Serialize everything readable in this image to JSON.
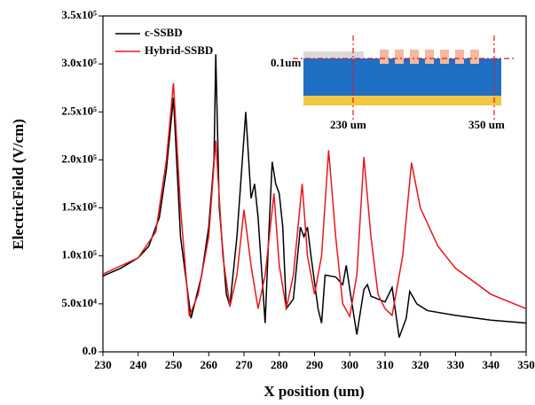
{
  "chart_data": {
    "type": "line",
    "xlabel": "X position (um)",
    "ylabel": "ElectricField (V/cm)",
    "xlim": [
      230,
      350
    ],
    "xticks": [
      230,
      240,
      250,
      260,
      270,
      280,
      290,
      300,
      310,
      320,
      330,
      340,
      350
    ],
    "ylim": [
      0,
      350000
    ],
    "yticks": [
      {
        "value": 0,
        "label": "0.0"
      },
      {
        "value": 50000,
        "label": "5.0x10⁴"
      },
      {
        "value": 100000,
        "label": "1.0x10⁵"
      },
      {
        "value": 150000,
        "label": "1.5x10⁵"
      },
      {
        "value": 200000,
        "label": "2.0x10⁵"
      },
      {
        "value": 250000,
        "label": "2.5x10⁵"
      },
      {
        "value": 300000,
        "label": "3.0x10⁵"
      },
      {
        "value": 350000,
        "label": "3.5x10⁵"
      }
    ],
    "legend": "upper left",
    "annotations": [
      "0.1um",
      "230 um",
      "350 um"
    ],
    "series": [
      {
        "name": "c-SSBD",
        "color": "#000000",
        "x": [
          230,
          235,
          240,
          243,
          246,
          248,
          250,
          252,
          255,
          258,
          260,
          261.5,
          262,
          263,
          265,
          266,
          268,
          270.5,
          272,
          273,
          274,
          276,
          277,
          278,
          279,
          280,
          281,
          282,
          284,
          286,
          287,
          288,
          289,
          291,
          292,
          293,
          296,
          298,
          299,
          300,
          302,
          304,
          305,
          306,
          310,
          312,
          314,
          316,
          317,
          319,
          322,
          330,
          340,
          350
        ],
        "values": [
          79000,
          87000,
          98000,
          110000,
          140000,
          190000,
          265000,
          120000,
          35000,
          80000,
          130000,
          200000,
          310000,
          150000,
          60000,
          48000,
          120000,
          250000,
          160000,
          175000,
          140000,
          30000,
          120000,
          198000,
          175000,
          165000,
          130000,
          45000,
          55000,
          130000,
          120000,
          130000,
          100000,
          45000,
          30000,
          80000,
          78000,
          70000,
          90000,
          65000,
          18000,
          65000,
          70000,
          58000,
          52000,
          67000,
          15000,
          35000,
          63000,
          50000,
          43000,
          38000,
          33000,
          30000
        ]
      },
      {
        "name": "Hybrid-SSBD",
        "color": "#e8161c",
        "x": [
          230,
          240,
          245,
          248,
          250,
          252,
          254.5,
          257,
          260,
          262,
          264,
          266,
          268,
          270,
          272,
          274,
          276,
          278.5,
          280,
          282,
          284,
          286.5,
          288,
          290,
          292,
          294,
          296,
          298,
          300,
          302,
          304,
          306,
          308,
          310,
          312,
          315,
          317.5,
          320,
          325,
          330,
          340,
          350
        ],
        "values": [
          81000,
          98000,
          125000,
          200000,
          280000,
          150000,
          37000,
          60000,
          120000,
          220000,
          100000,
          47000,
          80000,
          148000,
          90000,
          45000,
          80000,
          165000,
          90000,
          45000,
          80000,
          175000,
          100000,
          60000,
          100000,
          210000,
          120000,
          50000,
          37000,
          80000,
          203000,
          120000,
          60000,
          45000,
          38000,
          100000,
          197000,
          150000,
          110000,
          87000,
          60000,
          45000
        ]
      }
    ]
  }
}
